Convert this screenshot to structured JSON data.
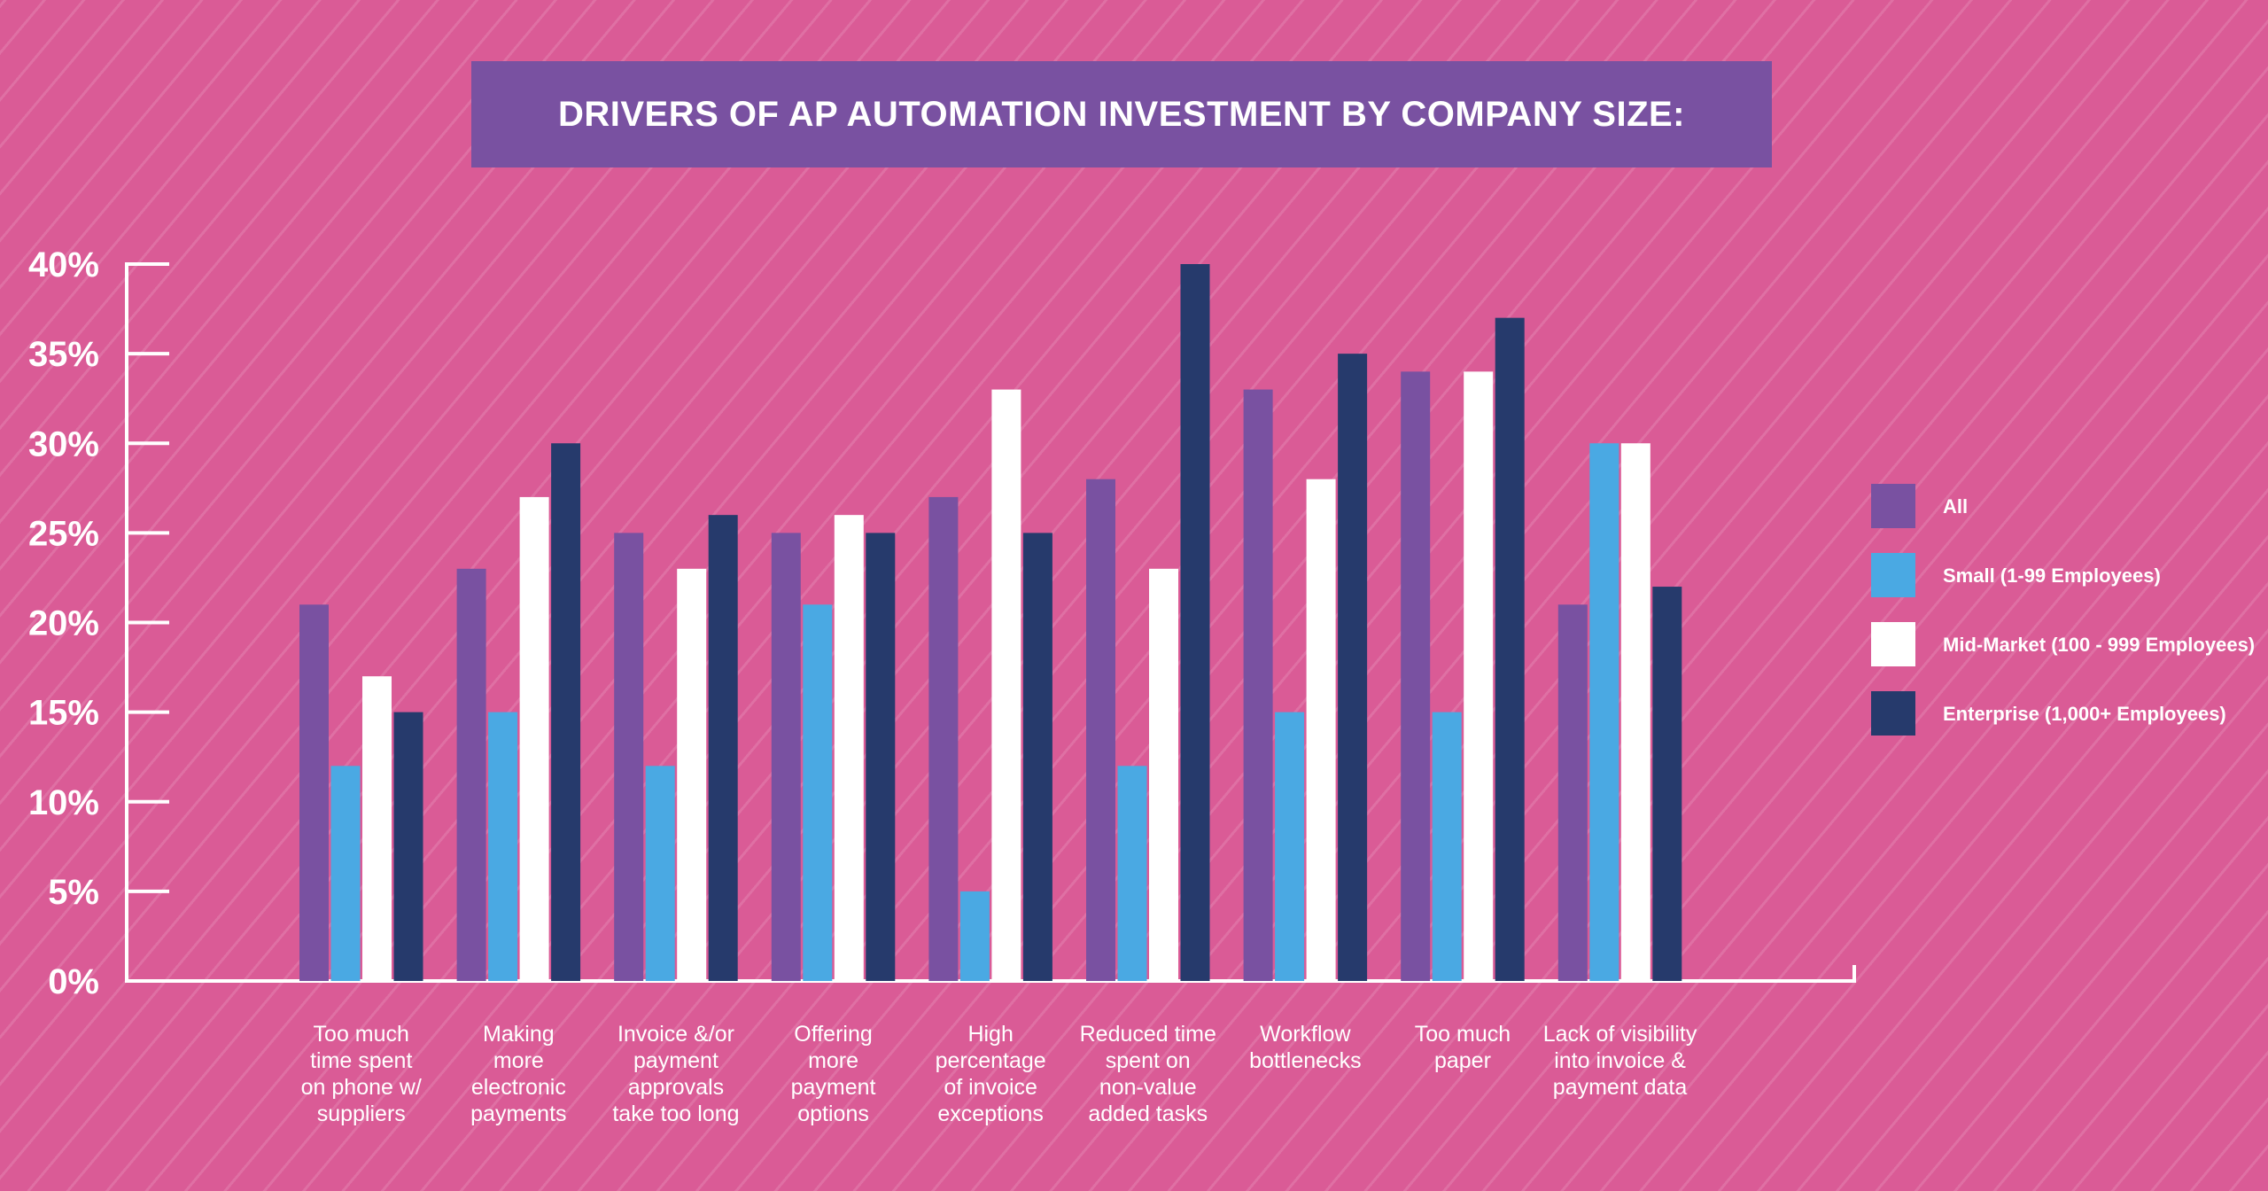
{
  "colors": {
    "background": "#da5b96",
    "banner": "#7951a1",
    "axis": "#ffffff"
  },
  "chart_data": {
    "type": "bar",
    "title": "DRIVERS OF AP AUTOMATION INVESTMENT BY COMPANY SIZE:",
    "xlabel": "",
    "ylabel": "",
    "ylim": [
      0,
      40
    ],
    "yticks": [
      "0%",
      "5%",
      "10%",
      "15%",
      "20%",
      "25%",
      "30%",
      "35%",
      "40%"
    ],
    "categories": [
      [
        "Too much",
        "time spent",
        "on phone w/",
        "suppliers"
      ],
      [
        "Making",
        "more",
        "electronic",
        "payments"
      ],
      [
        "Invoice &/or",
        "payment",
        "approvals",
        "take too long"
      ],
      [
        "Offering",
        "more",
        "payment",
        "options"
      ],
      [
        "High",
        "percentage",
        "of invoice",
        "exceptions"
      ],
      [
        "Reduced time",
        "spent on",
        "non-value",
        "added tasks"
      ],
      [
        "Workflow",
        "bottlenecks"
      ],
      [
        "Too much",
        "paper"
      ],
      [
        "Lack of visibility",
        "into invoice &",
        "payment data"
      ]
    ],
    "series": [
      {
        "name": "All",
        "color": "#7951a1",
        "values": [
          21,
          23,
          25,
          25,
          27,
          28,
          33,
          34,
          21
        ]
      },
      {
        "name": "Small (1-99 Employees)",
        "color": "#4aa9e3",
        "values": [
          12,
          15,
          12,
          21,
          5,
          12,
          15,
          15,
          30
        ]
      },
      {
        "name": "Mid-Market (100 - 999 Employees)",
        "color": "#ffffff",
        "values": [
          17,
          27,
          23,
          26,
          33,
          23,
          28,
          34,
          30
        ]
      },
      {
        "name": "Enterprise (1,000+ Employees)",
        "color": "#263a6c",
        "values": [
          15,
          30,
          26,
          25,
          25,
          40,
          35,
          37,
          22
        ]
      }
    ],
    "legend": "right"
  }
}
